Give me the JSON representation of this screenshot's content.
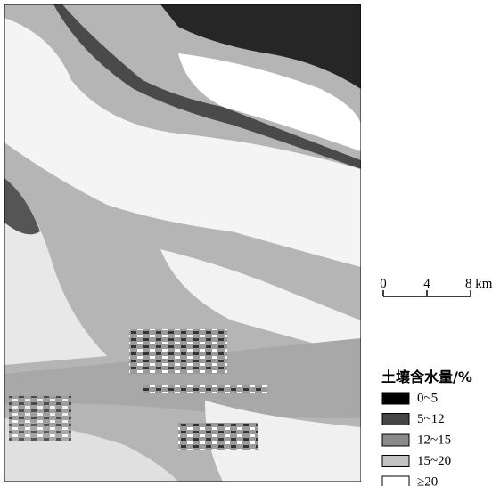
{
  "scale_bar": {
    "labels": [
      "0",
      "4",
      "8 km"
    ]
  },
  "legend": {
    "title": "土壤含水量/%",
    "items": [
      {
        "label": "0~5",
        "color": "#000000"
      },
      {
        "label": "5~12",
        "color": "#454545"
      },
      {
        "label": "12~15",
        "color": "#8a8a8a"
      },
      {
        "label": "15~20",
        "color": "#c2c2c2"
      },
      {
        "label": "≥20",
        "color": "#ffffff"
      }
    ]
  }
}
